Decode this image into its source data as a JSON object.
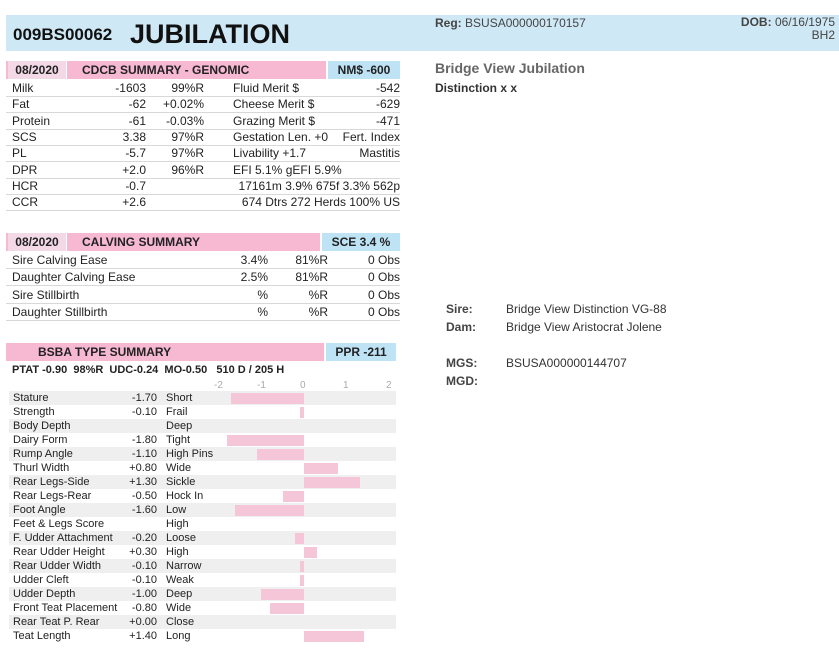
{
  "header": {
    "code": "009BS00062",
    "name": "JUBILATION",
    "reg_label": "Reg:",
    "reg_value": "BSUSA000000170157",
    "dob_label": "DOB:",
    "dob_value": "06/16/1975",
    "extra": "BH2"
  },
  "genomic": {
    "date": "08/2020",
    "title": "CDCB SUMMARY - GENOMIC",
    "nm": "NM$ -600",
    "rows": [
      [
        "Milk",
        "-1603",
        "99%R",
        "Fluid Merit $",
        "",
        "-542"
      ],
      [
        "Fat",
        "-62",
        "+0.02%",
        "Cheese Merit $",
        "",
        "-629"
      ],
      [
        "Protein",
        "-61",
        "-0.03%",
        "Grazing Merit $",
        "",
        "-471"
      ],
      [
        "SCS",
        "3.38",
        "97%R",
        "Gestation Len. +0",
        "",
        "Fert. Index"
      ],
      [
        "PL",
        "-5.7",
        "97%R",
        "Livability  +1.7",
        "",
        "Mastitis"
      ],
      [
        "DPR",
        "+2.0",
        "96%R",
        "EFI  5.1%  gEFI  5.9%",
        "",
        ""
      ],
      [
        "HCR",
        "-0.7",
        "",
        "17161m  3.9%  675f  3.3%  562p",
        "",
        ""
      ],
      [
        "CCR",
        "+2.6",
        "",
        "674 Dtrs  272 Herds  100% US",
        "",
        ""
      ]
    ]
  },
  "calving": {
    "date": "08/2020",
    "title": "CALVING SUMMARY",
    "sce": "SCE 3.4 %",
    "rows": [
      [
        "Sire Calving Ease",
        "3.4%",
        "81%R",
        "0 Obs"
      ],
      [
        "Daughter Calving Ease",
        "2.5%",
        "81%R",
        "0 Obs"
      ],
      [
        "Sire Stillbirth",
        "%",
        "%R",
        "0 Obs"
      ],
      [
        "Daughter Stillbirth",
        "%",
        "%R",
        "0 Obs"
      ]
    ]
  },
  "type": {
    "title": "BSBA TYPE SUMMARY",
    "ppr": "PPR -211",
    "ptat": "PTAT -0.90  98%R  UDC-0.24  MO-0.50   510 D / 205 H",
    "axis": [
      "-2",
      "-1",
      "0",
      "1",
      "2"
    ],
    "traits": [
      {
        "name": "Stature",
        "val": "-1.70",
        "desc": "Short",
        "v": -1.7
      },
      {
        "name": "Strength",
        "val": "-0.10",
        "desc": "Frail",
        "v": -0.1
      },
      {
        "name": "Body Depth",
        "val": "",
        "desc": "Deep",
        "v": 0
      },
      {
        "name": "Dairy Form",
        "val": "-1.80",
        "desc": "Tight",
        "v": -1.8
      },
      {
        "name": "Rump Angle",
        "val": "-1.10",
        "desc": "High Pins",
        "v": -1.1
      },
      {
        "name": "Thurl Width",
        "val": "+0.80",
        "desc": "Wide",
        "v": 0.8
      },
      {
        "name": "Rear Legs-Side",
        "val": "+1.30",
        "desc": "Sickle",
        "v": 1.3
      },
      {
        "name": "Rear Legs-Rear",
        "val": "-0.50",
        "desc": "Hock In",
        "v": -0.5
      },
      {
        "name": "Foot Angle",
        "val": "-1.60",
        "desc": "Low",
        "v": -1.6
      },
      {
        "name": "Feet & Legs Score",
        "val": "",
        "desc": "High",
        "v": 0
      },
      {
        "name": "F. Udder Attachment",
        "val": "-0.20",
        "desc": "Loose",
        "v": -0.2
      },
      {
        "name": "Rear Udder Height",
        "val": "+0.30",
        "desc": "High",
        "v": 0.3
      },
      {
        "name": "Rear Udder Width",
        "val": "-0.10",
        "desc": "Narrow",
        "v": -0.1
      },
      {
        "name": "Udder Cleft",
        "val": "-0.10",
        "desc": "Weak",
        "v": -0.1
      },
      {
        "name": "Udder Depth",
        "val": "-1.00",
        "desc": "Deep",
        "v": -1.0
      },
      {
        "name": "Front Teat Placement",
        "val": "-0.80",
        "desc": "Wide",
        "v": -0.8
      },
      {
        "name": "Rear Teat P. Rear",
        "val": "+0.00",
        "desc": "Close",
        "v": 0
      },
      {
        "name": "Teat Length",
        "val": "+1.40",
        "desc": "Long",
        "v": 1.4
      }
    ]
  },
  "right": {
    "title": "Bridge View Jubilation",
    "subtitle": "Distinction x x",
    "sire_label": "Sire:",
    "sire": "Bridge View Distinction VG-88",
    "dam_label": "Dam:",
    "dam": "Bridge View Aristocrat Jolene",
    "mgs_label": "MGS:",
    "mgs": "BSUSA000000144707",
    "mgd_label": "MGD:",
    "mgd": ""
  }
}
